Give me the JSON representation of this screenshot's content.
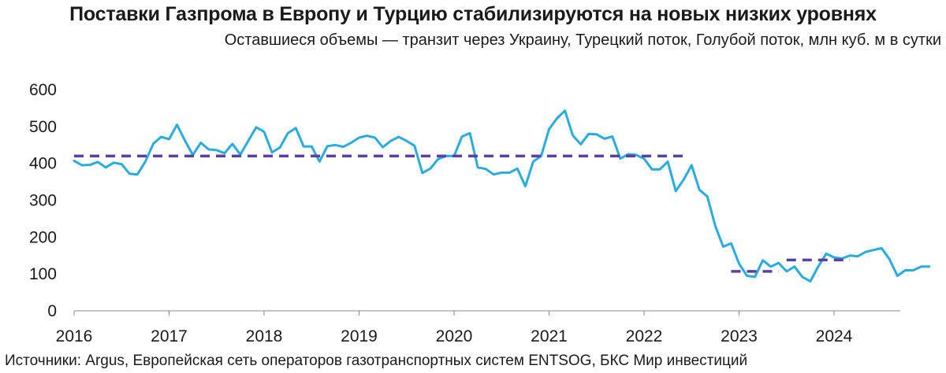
{
  "title": "Поставки Газпрома в Европу и Турцию стабилизируются на новых низких уровнях",
  "subtitle": "Оставшиеся объемы — транзит через Украину, Турецкий поток, Голубой поток, млн куб. м в сутки",
  "source": "Источники: Argus, Европейская сеть операторов газотранспортных систем ENTSOG, БКС Мир инвестиций",
  "colors": {
    "line": "#29abe2",
    "reference": "#5b3fa5",
    "axis": "#888888"
  },
  "chart_data": {
    "type": "line",
    "x_start": "2016-01",
    "frequency": "monthly",
    "x_ticks": [
      "2016",
      "2017",
      "2018",
      "2019",
      "2020",
      "2021",
      "2022",
      "2023",
      "2024"
    ],
    "y_ticks": [
      "0",
      "100",
      "200",
      "300",
      "400",
      "500",
      "600"
    ],
    "ylim": [
      0,
      600
    ],
    "grid": false,
    "series": [
      {
        "values": [
          407,
          395,
          396,
          404,
          389,
          402,
          398,
          372,
          370,
          405,
          453,
          472,
          466,
          505,
          462,
          423,
          456,
          438,
          436,
          428,
          453,
          424,
          461,
          498,
          486,
          430,
          443,
          482,
          496,
          446,
          446,
          405,
          447,
          450,
          445,
          456,
          470,
          475,
          470,
          444,
          461,
          472,
          461,
          448,
          374,
          386,
          412,
          420,
          420,
          473,
          482,
          389,
          385,
          370,
          375,
          375,
          386,
          338,
          405,
          420,
          493,
          522,
          543,
          476,
          452,
          480,
          479,
          467,
          473,
          413,
          425,
          423,
          413,
          384,
          384,
          405,
          325,
          356,
          395,
          328,
          310,
          230,
          174,
          183,
          128,
          95,
          92,
          137,
          120,
          130,
          107,
          120,
          92,
          80,
          120,
          155,
          145,
          142,
          150,
          148,
          160,
          165,
          170,
          140,
          95,
          110,
          110,
          120,
          120
        ]
      }
    ],
    "reference_levels": [
      {
        "value": 420,
        "from": "2016-01",
        "to": "2022-06"
      },
      {
        "value": 107,
        "from": "2022-12",
        "to": "2023-06"
      },
      {
        "value": 138,
        "from": "2023-07",
        "to": "2024-03"
      }
    ]
  }
}
